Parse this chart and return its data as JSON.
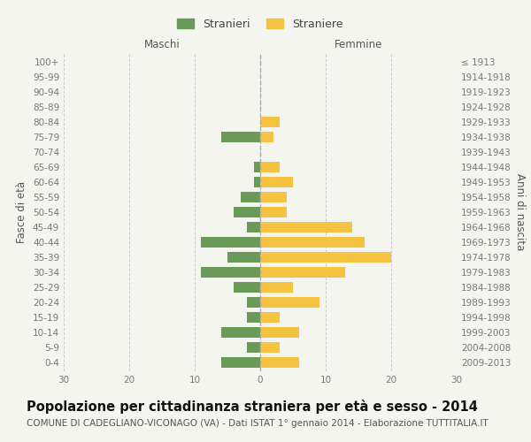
{
  "age_groups": [
    "0-4",
    "5-9",
    "10-14",
    "15-19",
    "20-24",
    "25-29",
    "30-34",
    "35-39",
    "40-44",
    "45-49",
    "50-54",
    "55-59",
    "60-64",
    "65-69",
    "70-74",
    "75-79",
    "80-84",
    "85-89",
    "90-94",
    "95-99",
    "100+"
  ],
  "birth_years": [
    "2009-2013",
    "2004-2008",
    "1999-2003",
    "1994-1998",
    "1989-1993",
    "1984-1988",
    "1979-1983",
    "1974-1978",
    "1969-1973",
    "1964-1968",
    "1959-1963",
    "1954-1958",
    "1949-1953",
    "1944-1948",
    "1939-1943",
    "1934-1938",
    "1929-1933",
    "1924-1928",
    "1919-1923",
    "1914-1918",
    "≤ 1913"
  ],
  "maschi": [
    6,
    2,
    6,
    2,
    2,
    4,
    9,
    5,
    9,
    2,
    4,
    3,
    1,
    1,
    0,
    6,
    0,
    0,
    0,
    0,
    0
  ],
  "femmine": [
    6,
    3,
    6,
    3,
    9,
    5,
    13,
    20,
    16,
    14,
    4,
    4,
    5,
    3,
    0,
    2,
    3,
    0,
    0,
    0,
    0
  ],
  "male_color": "#6a9a58",
  "female_color": "#f5c242",
  "background_color": "#f5f5f0",
  "grid_color": "#cccccc",
  "center_line_color": "#aaaaaa",
  "title": "Popolazione per cittadinanza straniera per età e sesso - 2014",
  "subtitle": "COMUNE DI CADEGLIANO-VICONAGO (VA) - Dati ISTAT 1° gennaio 2014 - Elaborazione TUTTITALIA.IT",
  "ylabel_left": "Fasce di età",
  "ylabel_right": "Anni di nascita",
  "maschi_label": "Maschi",
  "femmine_label": "Femmine",
  "legend_stranieri": "Stranieri",
  "legend_straniere": "Straniere",
  "xlim": 30,
  "title_fontsize": 10.5,
  "subtitle_fontsize": 7.5,
  "tick_fontsize": 7.5,
  "label_fontsize": 8.5
}
